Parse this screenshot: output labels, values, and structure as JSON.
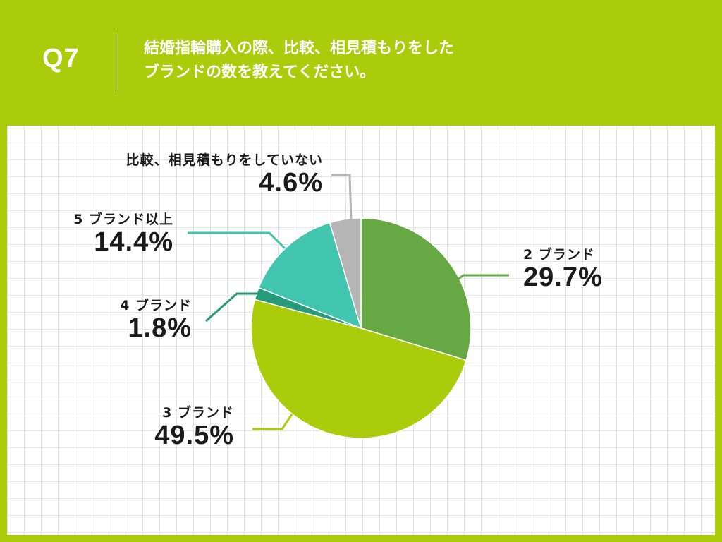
{
  "header": {
    "q_label": "Q7",
    "question_line1": "結婚指輪購入の際、比較、相見積もりをした",
    "question_line2": "ブランドの数を教えてください。"
  },
  "chart_data": {
    "type": "pie",
    "title": "",
    "slices": [
      {
        "label": "2 ブランド",
        "value": 29.7,
        "display": "29.7%",
        "color": "#65A844"
      },
      {
        "label": "3 ブランド",
        "value": 49.5,
        "display": "49.5%",
        "color": "#AACC0A"
      },
      {
        "label": "4 ブランド",
        "value": 1.8,
        "display": "1.8%",
        "color": "#279A7A"
      },
      {
        "label": "5 ブランド以上",
        "value": 14.4,
        "display": "14.4%",
        "color": "#42C5AE"
      },
      {
        "label": "比較、相見積もりをしていない",
        "value": 4.6,
        "display": "4.6%",
        "color": "#B5B5B5"
      }
    ]
  }
}
